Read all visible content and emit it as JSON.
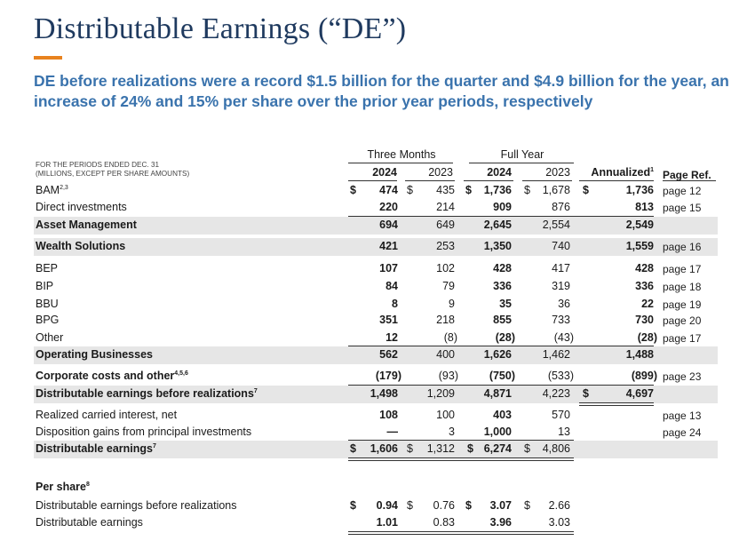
{
  "title": "Distributable Earnings (“DE”)",
  "subtitle": "DE before realizations were a record $1.5 billion for the quarter and $4.9 billion for the year, an increase of 24% and 15% per share over the prior year periods, respectively",
  "periods_note": [
    "FOR THE PERIODS ENDED DEC. 31",
    "(MILLIONS, EXCEPT PER SHARE AMOUNTS)"
  ],
  "groups": {
    "three_months": "Three Months",
    "full_year": "Full Year"
  },
  "columns": {
    "q2024": "2024",
    "q2023": "2023",
    "fy2024": "2024",
    "fy2023": "2023",
    "annualized": "Annualized",
    "annualized_sup": "1",
    "page_ref": "Page Ref."
  },
  "rows": [
    {
      "label": "BAM",
      "sup": "2,3",
      "q24": "474",
      "q23": "435",
      "fy24": "1,736",
      "fy23": "1,678",
      "ann": "1,736",
      "page": "page 12",
      "cur": "$"
    },
    {
      "label": "Direct investments",
      "sup": "",
      "q24": "220",
      "q23": "214",
      "fy24": "909",
      "fy23": "876",
      "ann": "813",
      "page": "page 15"
    },
    {
      "label": "Asset Management",
      "sup": "",
      "q24": "694",
      "q23": "649",
      "fy24": "2,645",
      "fy23": "2,554",
      "ann": "2,549",
      "page": ""
    },
    {
      "label": "Wealth Solutions",
      "sup": "",
      "q24": "421",
      "q23": "253",
      "fy24": "1,350",
      "fy23": "740",
      "ann": "1,559",
      "page": "page 16"
    },
    {
      "label": "BEP",
      "sup": "",
      "q24": "107",
      "q23": "102",
      "fy24": "428",
      "fy23": "417",
      "ann": "428",
      "page": "page 17"
    },
    {
      "label": "BIP",
      "sup": "",
      "q24": "84",
      "q23": "79",
      "fy24": "336",
      "fy23": "319",
      "ann": "336",
      "page": "page 18"
    },
    {
      "label": "BBU",
      "sup": "",
      "q24": "8",
      "q23": "9",
      "fy24": "35",
      "fy23": "36",
      "ann": "22",
      "page": "page 19"
    },
    {
      "label": "BPG",
      "sup": "",
      "q24": "351",
      "q23": "218",
      "fy24": "855",
      "fy23": "733",
      "ann": "730",
      "page": "page 20"
    },
    {
      "label": "Other",
      "sup": "",
      "q24": "12",
      "q23": "(8)",
      "fy24": "(28)",
      "fy23": "(43)",
      "ann": "(28)",
      "page": "page 17"
    },
    {
      "label": "Operating Businesses",
      "sup": "",
      "q24": "562",
      "q23": "400",
      "fy24": "1,626",
      "fy23": "1,462",
      "ann": "1,488",
      "page": ""
    },
    {
      "label": "Corporate costs and other",
      "sup": "4,5,6",
      "q24": "(179)",
      "q23": "(93)",
      "fy24": "(750)",
      "fy23": "(533)",
      "ann": "(899)",
      "page": "page 23"
    },
    {
      "label": "Distributable earnings before realizations",
      "sup": "7",
      "q24": "1,498",
      "q23": "1,209",
      "fy24": "4,871",
      "fy23": "4,223",
      "ann": "4,697",
      "page": ""
    },
    {
      "label": "Realized carried interest, net",
      "sup": "",
      "q24": "108",
      "q23": "100",
      "fy24": "403",
      "fy23": "570",
      "ann": "",
      "page": "page 13"
    },
    {
      "label": "Disposition gains from principal investments",
      "sup": "",
      "q24": "—",
      "q23": "3",
      "fy24": "1,000",
      "fy23": "13",
      "ann": "",
      "page": "page 24"
    },
    {
      "label": "Distributable earnings",
      "sup": "7",
      "q24": "1,606",
      "q23": "1,312",
      "fy24": "6,274",
      "fy23": "4,806",
      "ann": "",
      "page": ""
    }
  ],
  "currency": "$",
  "per_share": {
    "title": "Per share",
    "sup": "8",
    "rows": [
      {
        "label": "Distributable earnings before realizations",
        "q24": "0.94",
        "q23": "0.76",
        "fy24": "3.07",
        "fy23": "2.66"
      },
      {
        "label": "Distributable earnings",
        "q24": "1.01",
        "q23": "0.83",
        "fy24": "3.96",
        "fy23": "3.03"
      }
    ]
  }
}
